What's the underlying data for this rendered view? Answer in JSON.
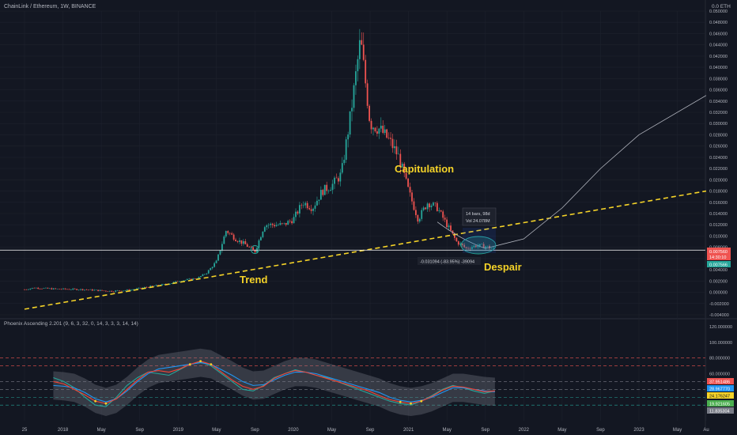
{
  "header": {
    "symbol": "ChainLink / Ethereum, 1W, BINANCE",
    "unit": "0.0 ETH"
  },
  "indicator": {
    "title": "Phoenix Ascending 2.201 (9, 6, 3, 32, 0, 14, 3, 3, 3, 14, 14)"
  },
  "annotations": {
    "trend": "Trend",
    "capitulation": "Capitulation",
    "despair": "Despair",
    "box_line1": "14 bars, 98d",
    "box_line2": "Vol 24.078M",
    "measure": "-0.031094 (-83.95%) -39094"
  },
  "price_badges": [
    "0.007560",
    "14:30:10",
    "0.007566"
  ],
  "osc_badges": [
    "37.951486",
    "28.967770",
    "24.176247",
    "19.921605",
    "11.835304"
  ],
  "chart_data": [
    {
      "type": "candlestick",
      "title": "ChainLink / Ethereum, 1W, BINANCE",
      "y_axis": {
        "min": -0.004,
        "max": 0.05,
        "ticks": [
          "0.050000",
          "0.048000",
          "0.046000",
          "0.044000",
          "0.042000",
          "0.040000",
          "0.038000",
          "0.036000",
          "0.034000",
          "0.032000",
          "0.030000",
          "0.028000",
          "0.026000",
          "0.024000",
          "0.022000",
          "0.020000",
          "0.018000",
          "0.016000",
          "0.014000",
          "0.012000",
          "0.010000",
          "0.008000",
          "0.006000",
          "0.004000",
          "0.002000",
          "0.000000",
          "-0.002000",
          "-0.004000"
        ]
      },
      "x_axis": {
        "ticks": [
          {
            "label": "25",
            "date": "2017-09"
          },
          {
            "label": "2018",
            "date": "2018-01"
          },
          {
            "label": "May",
            "date": "2018-05"
          },
          {
            "label": "Sep",
            "date": "2018-09"
          },
          {
            "label": "2019",
            "date": "2019-01"
          },
          {
            "label": "May",
            "date": "2019-05"
          },
          {
            "label": "Sep",
            "date": "2019-09"
          },
          {
            "label": "2020",
            "date": "2020-01"
          },
          {
            "label": "May",
            "date": "2020-05"
          },
          {
            "label": "Sep",
            "date": "2020-09"
          },
          {
            "label": "2021",
            "date": "2021-01"
          },
          {
            "label": "May",
            "date": "2021-05"
          },
          {
            "label": "Sep",
            "date": "2021-09"
          },
          {
            "label": "2022",
            "date": "2022-01"
          },
          {
            "label": "May",
            "date": "2022-05"
          },
          {
            "label": "Sep",
            "date": "2022-09"
          },
          {
            "label": "2023",
            "date": "2023-01"
          },
          {
            "label": "May",
            "date": "2023-05"
          },
          {
            "label": "Au",
            "date": "2023-08"
          }
        ]
      },
      "price_path": [
        [
          "2017-09",
          0.0005
        ],
        [
          "2017-10",
          0.0008
        ],
        [
          "2017-12",
          0.0006
        ],
        [
          "2018-03",
          0.0005
        ],
        [
          "2018-06",
          0.0002
        ],
        [
          "2018-08",
          0.0004
        ],
        [
          "2018-10",
          0.001
        ],
        [
          "2018-12",
          0.0015
        ],
        [
          "2019-01",
          0.002
        ],
        [
          "2019-03",
          0.0025
        ],
        [
          "2019-04",
          0.0035
        ],
        [
          "2019-05",
          0.0055
        ],
        [
          "2019-06",
          0.011
        ],
        [
          "2019-07",
          0.0095
        ],
        [
          "2019-08",
          0.0085
        ],
        [
          "2019-09",
          0.0072
        ],
        [
          "2019-10",
          0.012
        ],
        [
          "2019-12",
          0.012
        ],
        [
          "2020-01",
          0.013
        ],
        [
          "2020-02",
          0.016
        ],
        [
          "2020-03",
          0.015
        ],
        [
          "2020-04",
          0.018
        ],
        [
          "2020-05",
          0.019
        ],
        [
          "2020-06",
          0.021
        ],
        [
          "2020-07",
          0.032
        ],
        [
          "2020-08",
          0.045
        ],
        [
          "2020-09",
          0.03
        ],
        [
          "2020-10",
          0.029
        ],
        [
          "2020-11",
          0.027
        ],
        [
          "2020-12",
          0.024
        ],
        [
          "2021-01",
          0.018
        ],
        [
          "2021-02",
          0.013
        ],
        [
          "2021-03",
          0.016
        ],
        [
          "2021-04",
          0.015
        ],
        [
          "2021-05",
          0.012
        ],
        [
          "2021-06",
          0.009
        ],
        [
          "2021-07",
          0.0078
        ],
        [
          "2021-08",
          0.0083
        ],
        [
          "2021-09",
          0.0082
        ],
        [
          "2021-10",
          0.0076
        ]
      ],
      "trendline": {
        "style": "dashed",
        "color": "#f5d328",
        "points": [
          [
            "2017-09",
            -0.003
          ],
          [
            "2023-08",
            0.018
          ]
        ]
      },
      "horizontal_line": {
        "value": 0.0075,
        "color": "#ffffff"
      },
      "projection_curve": {
        "color": "#b2b5be",
        "points": [
          [
            "2021-04",
            0.0125
          ],
          [
            "2021-09",
            0.0078
          ],
          [
            "2022-01",
            0.0095
          ],
          [
            "2022-05",
            0.015
          ],
          [
            "2022-09",
            0.022
          ],
          [
            "2023-01",
            0.028
          ],
          [
            "2023-08",
            0.035
          ]
        ]
      },
      "last_price": 0.00756
    },
    {
      "type": "line",
      "title": "Phoenix Ascending 2.201 (9, 6, 3, 32, 0, 14, 3, 3, 3, 14, 14)",
      "y_axis": {
        "min": 0,
        "max": 120,
        "ticks": [
          "120.000000",
          "100.000000",
          "80.000000",
          "60.000000",
          "40.000000",
          "20.000000"
        ]
      },
      "reference_levels": [
        80,
        70,
        50,
        40,
        30,
        20
      ],
      "series": [
        {
          "color": "#26a69a",
          "values": [
            55,
            50,
            42,
            30,
            20,
            18,
            30,
            45,
            55,
            62,
            60,
            58,
            65,
            72,
            75,
            70,
            60,
            50,
            40,
            38,
            45,
            55,
            60,
            65,
            62,
            58,
            55,
            50,
            45,
            40,
            35,
            30,
            25,
            22,
            20,
            25,
            32,
            40,
            45,
            42,
            38,
            35,
            38
          ]
        },
        {
          "color": "#2196f3",
          "values": [
            45,
            44,
            42,
            36,
            28,
            24,
            28,
            38,
            50,
            60,
            66,
            68,
            70,
            72,
            74,
            72,
            65,
            58,
            50,
            45,
            46,
            52,
            58,
            62,
            62,
            60,
            56,
            52,
            48,
            44,
            40,
            36,
            30,
            26,
            24,
            26,
            30,
            36,
            42,
            42,
            40,
            38,
            37
          ]
        },
        {
          "color": "#f44336",
          "values": [
            50,
            47,
            40,
            33,
            25,
            22,
            28,
            40,
            52,
            62,
            64,
            62,
            66,
            72,
            76,
            72,
            62,
            52,
            44,
            40,
            44,
            54,
            60,
            64,
            62,
            58,
            54,
            50,
            46,
            42,
            38,
            32,
            27,
            24,
            22,
            25,
            31,
            39,
            44,
            43,
            40,
            37,
            38
          ]
        }
      ]
    }
  ]
}
